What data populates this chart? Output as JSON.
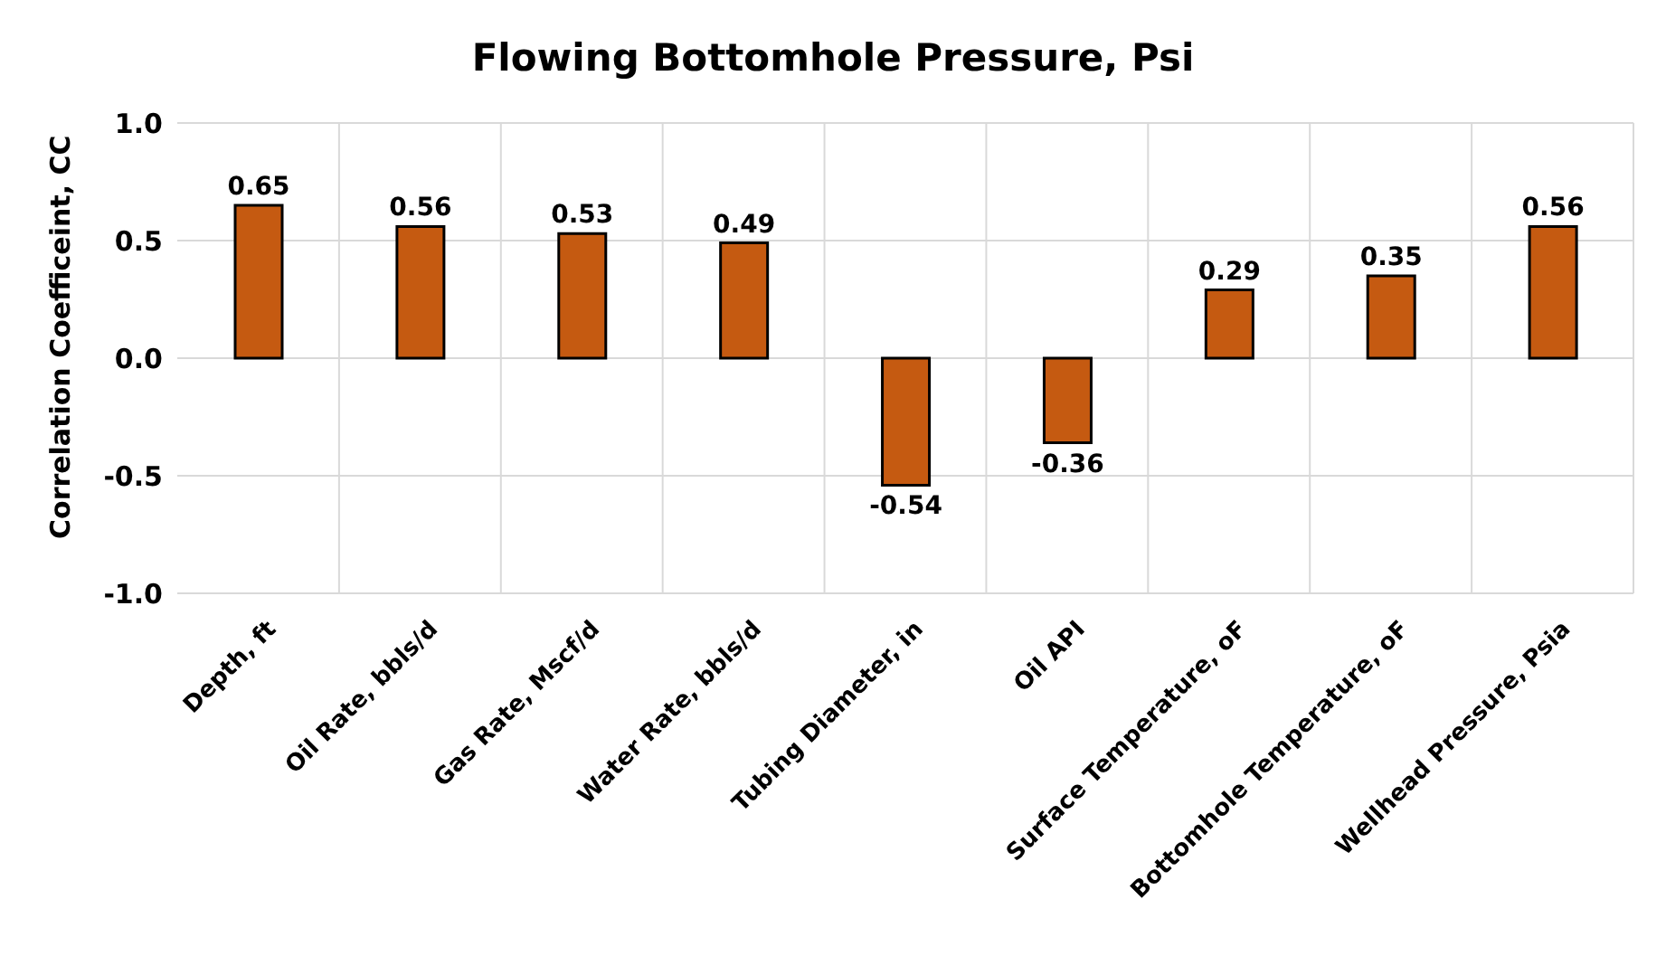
{
  "chart_data": {
    "type": "bar",
    "title": "Flowing Bottomhole Pressure, Psi",
    "ylabel": "Correlation Coefficeint, CC",
    "categories": [
      "Depth, ft",
      "Oil Rate, bbls/d",
      "Gas Rate, Mscf/d",
      "Water Rate, bbls/d",
      "Tubing Diameter, in",
      "Oil API",
      "Surface Temperature, oF",
      "Bottomhole Temperature, oF",
      "Wellhead Pressure, Psia"
    ],
    "values": [
      0.65,
      0.56,
      0.53,
      0.49,
      -0.54,
      -0.36,
      0.29,
      0.35,
      0.56
    ],
    "color": "#c55a11",
    "ylim": [
      -1,
      1
    ],
    "yticks": [
      {
        "value": -1,
        "label": "-1.0"
      },
      {
        "value": -0.5,
        "label": "-0.5"
      },
      {
        "value": 0,
        "label": "0.0"
      },
      {
        "value": 0.5,
        "label": "0.5"
      },
      {
        "value": 1,
        "label": "1.0"
      }
    ],
    "grid": true,
    "data_labels": true
  }
}
